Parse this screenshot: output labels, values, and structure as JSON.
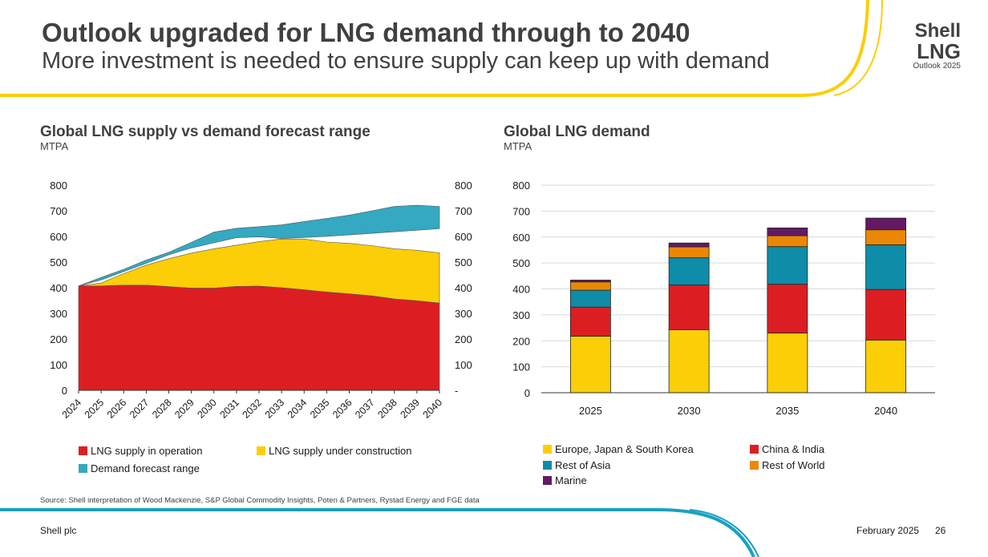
{
  "header": {
    "title": "Outlook upgraded for LNG demand through to 2040",
    "subtitle": "More investment is needed to ensure supply can keep up with demand"
  },
  "logo": {
    "line1": "Shell",
    "line2": "LNG",
    "line3": "Outlook 2025"
  },
  "colors": {
    "red": "#dc1e23",
    "yellow": "#fbce07",
    "teal": "#34a9c1",
    "tealDark": "#0f8ca8",
    "orange": "#eb8705",
    "purple": "#641964",
    "accentTeal": "#1aa0c1",
    "accentYellow": "#fbce07"
  },
  "left_chart": {
    "title": "Global LNG supply vs demand forecast range",
    "unit": "MTPA"
  },
  "right_chart": {
    "title": "Global LNG demand",
    "unit": "MTPA"
  },
  "chart_data": [
    {
      "type": "area",
      "title": "Global LNG supply vs demand forecast range",
      "ylabel": "MTPA",
      "x": [
        "2024",
        "2025",
        "2026",
        "2027",
        "2028",
        "2029",
        "2030",
        "2031",
        "2032",
        "2033",
        "2034",
        "2035",
        "2036",
        "2037",
        "2038",
        "2039",
        "2040"
      ],
      "ylim": [
        0,
        800
      ],
      "yticks_left": [
        "0",
        "100",
        "200",
        "300",
        "400",
        "500",
        "600",
        "700",
        "800"
      ],
      "yticks_right": [
        "-",
        "100",
        "200",
        "300",
        "400",
        "500",
        "600",
        "700",
        "800"
      ],
      "series": [
        {
          "name": "LNG supply in operation",
          "color": "#dc1e23",
          "values": [
            407,
            407,
            410,
            410,
            404,
            398,
            398,
            405,
            406,
            400,
            392,
            383,
            376,
            368,
            356,
            349,
            340
          ]
        },
        {
          "name": "LNG supply under construction",
          "color": "#fbce07",
          "stacked_total": [
            407,
            418,
            455,
            488,
            513,
            535,
            552,
            566,
            580,
            590,
            590,
            578,
            573,
            564,
            552,
            546,
            536
          ]
        },
        {
          "name": "Demand forecast range",
          "color": "#34a9c1",
          "lower": [
            407,
            430,
            463,
            495,
            528,
            555,
            575,
            595,
            598,
            592,
            596,
            600,
            606,
            612,
            618,
            624,
            630
          ],
          "upper": [
            407,
            440,
            472,
            508,
            538,
            577,
            617,
            632,
            638,
            645,
            658,
            670,
            683,
            700,
            717,
            722,
            717
          ]
        }
      ],
      "legend": [
        "LNG supply in operation",
        "LNG supply under construction",
        "Demand forecast range"
      ],
      "grid": false
    },
    {
      "type": "bar",
      "title": "Global LNG demand",
      "ylabel": "MTPA",
      "categories": [
        "2025",
        "2030",
        "2035",
        "2040"
      ],
      "ylim": [
        0,
        800
      ],
      "yticks": [
        "0",
        "100",
        "200",
        "300",
        "400",
        "500",
        "600",
        "700",
        "800"
      ],
      "stacked": true,
      "grid": true,
      "series": [
        {
          "name": "Europe, Japan & South Korea",
          "color": "#fbce07",
          "values": [
            218,
            243,
            230,
            203
          ]
        },
        {
          "name": "China & India",
          "color": "#dc1e23",
          "values": [
            112,
            172,
            188,
            195
          ]
        },
        {
          "name": "Rest of Asia",
          "color": "#0f8ca8",
          "values": [
            65,
            105,
            145,
            172
          ]
        },
        {
          "name": "Rest of World",
          "color": "#eb8705",
          "values": [
            32,
            42,
            42,
            58
          ]
        },
        {
          "name": "Marine",
          "color": "#641964",
          "values": [
            7,
            15,
            30,
            45
          ]
        }
      ]
    }
  ],
  "legend_left": [
    {
      "label": "LNG supply in operation",
      "color": "#dc1e23"
    },
    {
      "label": "LNG supply under construction",
      "color": "#fbce07"
    },
    {
      "label": "Demand forecast range",
      "color": "#34a9c1"
    }
  ],
  "legend_right": [
    {
      "label": "Europe, Japan & South Korea",
      "color": "#fbce07"
    },
    {
      "label": "China & India",
      "color": "#dc1e23"
    },
    {
      "label": "Rest of Asia",
      "color": "#0f8ca8"
    },
    {
      "label": "Rest of World",
      "color": "#eb8705"
    },
    {
      "label": "Marine",
      "color": "#641964"
    }
  ],
  "source": "Source: Shell interpretation of Wood Mackenzie, S&P Global Commodity Insights, Poten & Partners, Rystad Energy and FGE data",
  "footer": {
    "company": "Shell plc",
    "date": "February 2025",
    "page": "26"
  }
}
